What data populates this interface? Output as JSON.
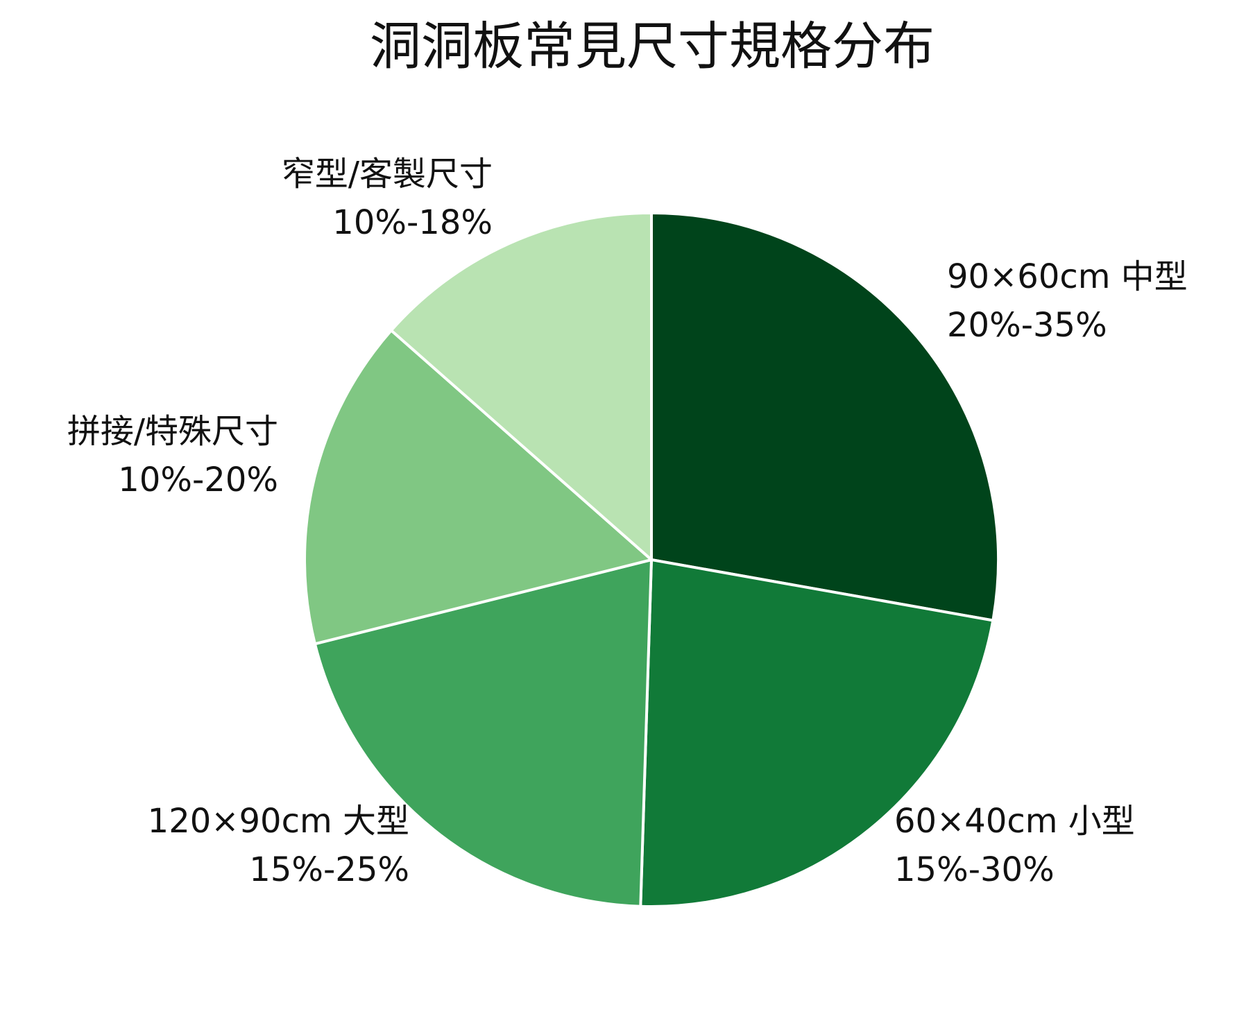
{
  "chart_data": {
    "type": "pie",
    "title": "洞洞板常見尺寸規格分布",
    "categories": [
      "90×60cm 中型",
      "60×40cm 小型",
      "120×90cm 大型",
      "拼接/特殊尺寸",
      "窄型/客製尺寸"
    ],
    "ranges": [
      "20%-35%",
      "15%-30%",
      "15%-25%",
      "10%-20%",
      "10%-18%"
    ],
    "values": [
      27.8,
      22.7,
      20.6,
      15.4,
      13.5
    ],
    "colors": [
      "#00441b",
      "#117a38",
      "#3fa45c",
      "#80c783",
      "#b9e3b2"
    ]
  }
}
